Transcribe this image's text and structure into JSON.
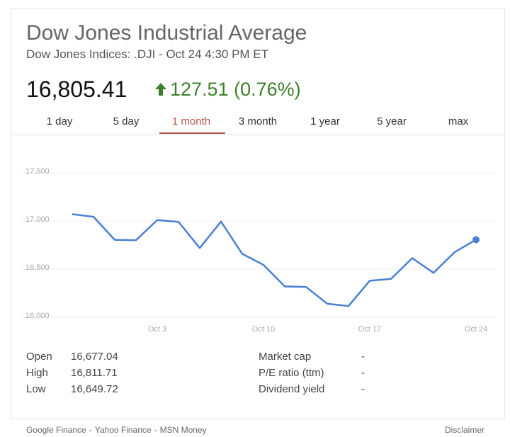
{
  "header": {
    "title": "Dow Jones Industrial Average",
    "subtitle": "Dow Jones Indices: .DJI - Oct 24 4:30 PM ET",
    "price": "16,805.41",
    "change": "127.51 (0.76%)"
  },
  "tabs": [
    "1 day",
    "5 day",
    "1 month",
    "3 month",
    "1 year",
    "5 year",
    "max"
  ],
  "selected_tab": 2,
  "chart_data": {
    "type": "line",
    "categories": [
      null,
      null,
      null,
      null,
      "Oct 3",
      null,
      null,
      null,
      null,
      "Oct 10",
      null,
      null,
      null,
      null,
      "Oct 17",
      null,
      null,
      null,
      null,
      "Oct 24"
    ],
    "values": [
      17071,
      17043,
      16804,
      16801,
      17009,
      16991,
      16719,
      16994,
      16659,
      16544,
      16321,
      16315,
      16141,
      16117,
      16380,
      16399,
      16614,
      16462,
      16677,
      16805.41
    ],
    "color": "#4a7fd6",
    "ylim": [
      16000,
      17500
    ],
    "yticks": [
      {
        "value": 16000,
        "label": "16,000"
      },
      {
        "value": 16500,
        "label": "16,500"
      },
      {
        "value": 17000,
        "label": "17,000"
      },
      {
        "value": 17500,
        "label": "17,500"
      }
    ],
    "grid": true
  },
  "stats": {
    "left": [
      [
        "Open",
        "16,677.04"
      ],
      [
        "High",
        "16,811.71"
      ],
      [
        "Low",
        "16,649.72"
      ]
    ],
    "right": [
      [
        "Market cap",
        "-"
      ],
      [
        "P/E ratio (ttm)",
        "-"
      ],
      [
        "Dividend yield",
        "-"
      ]
    ]
  },
  "footer": {
    "links": [
      "Google Finance",
      "Yahoo Finance",
      "MSN Money"
    ],
    "separator": "-",
    "disclaimer": "Disclaimer"
  }
}
